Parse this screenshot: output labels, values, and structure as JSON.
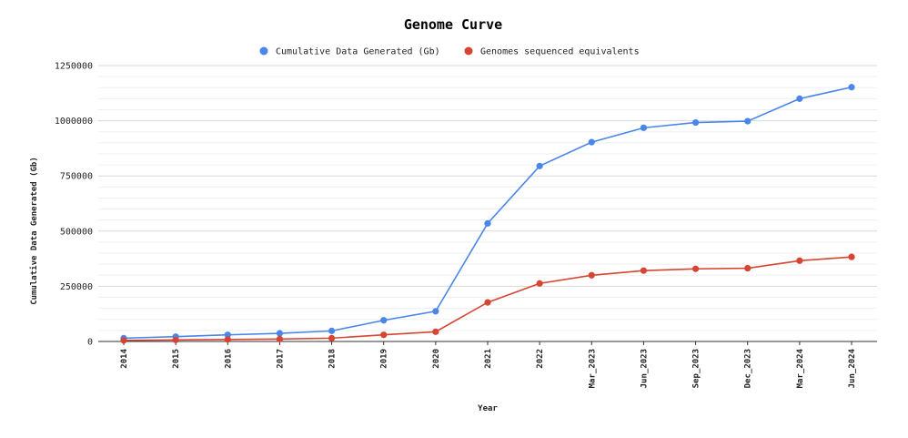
{
  "chart_data": {
    "type": "line",
    "title": "Genome Curve",
    "xlabel": "Year",
    "ylabel": "Cumulative Data Generated (Gb)",
    "categories": [
      "2014",
      "2015",
      "2016",
      "2017",
      "2018",
      "2019",
      "2020",
      "2021",
      "2022",
      "Mar_2023",
      "Jun_2023",
      "Sep_2023",
      "Dec_2023",
      "Mar_2024",
      "Jun_2024"
    ],
    "yticks": [
      0,
      250000,
      500000,
      750000,
      1000000,
      1250000
    ],
    "ytick_labels": [
      "0",
      "250000",
      "500000",
      "750000",
      "1000000",
      "1250000"
    ],
    "ylim": [
      0,
      1250000
    ],
    "grid": true,
    "legend_position": "top-center",
    "series": [
      {
        "name": "Cumulative Data Generated (Gb)",
        "color": "#4a86e8",
        "values": [
          15000,
          22000,
          30000,
          37000,
          48000,
          96000,
          137000,
          535000,
          795000,
          903000,
          968000,
          992000,
          998000,
          1100000,
          1152000
        ]
      },
      {
        "name": "Genomes sequenced equivalents",
        "color": "#d64532",
        "values": [
          5000,
          7000,
          9000,
          11000,
          15000,
          30000,
          44000,
          177000,
          263000,
          300000,
          321000,
          329000,
          332000,
          366000,
          383000
        ]
      }
    ]
  }
}
